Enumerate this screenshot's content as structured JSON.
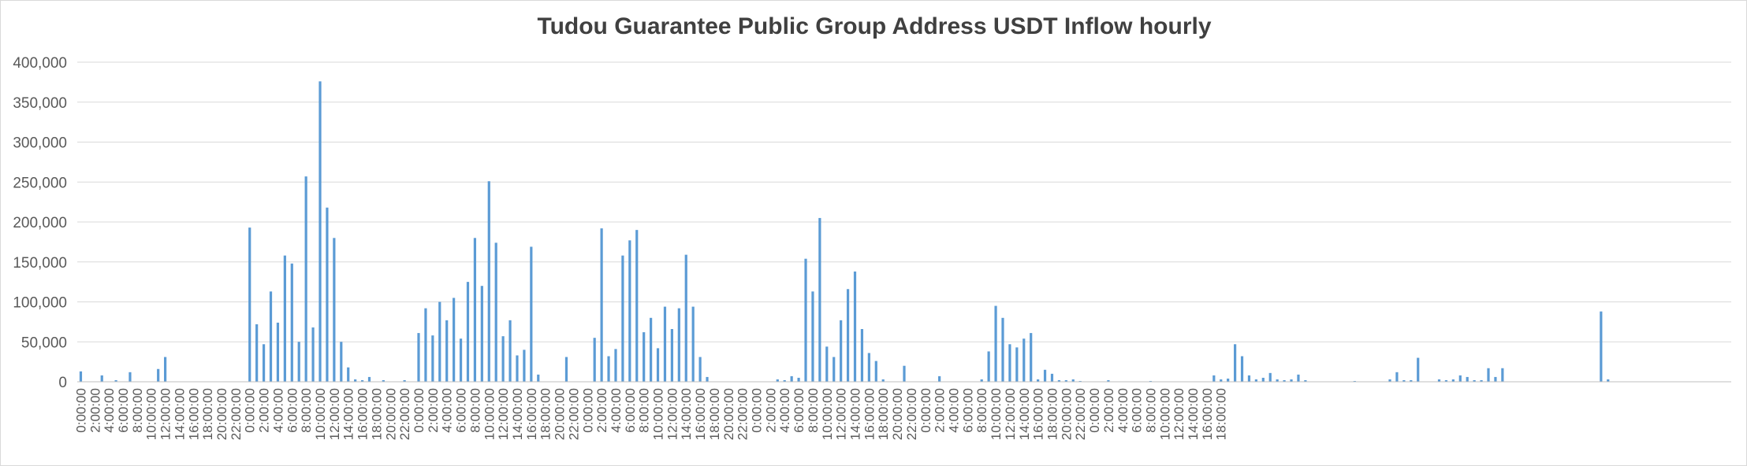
{
  "chart_data": {
    "type": "bar",
    "title": "Tudou Guarantee Public Group Address USDT Inflow hourly",
    "xlabel": "",
    "ylabel": "",
    "ylim": [
      0,
      400000
    ],
    "y_ticks": [
      "0",
      "50,000",
      "100,000",
      "150,000",
      "200,000",
      "250,000",
      "300,000",
      "350,000",
      "400,000"
    ],
    "grid": "horizontal",
    "legend": "none",
    "bar_color": "#5b9bd5",
    "x_tick_labels": [
      "0:00:00",
      "2:00:00",
      "4:00:00",
      "6:00:00",
      "8:00:00",
      "10:00:00",
      "12:00:00",
      "14:00:00",
      "16:00:00",
      "18:00:00",
      "20:00:00",
      "22:00:00",
      "0:00:00",
      "2:00:00",
      "4:00:00",
      "6:00:00",
      "8:00:00",
      "10:00:00",
      "12:00:00",
      "14:00:00",
      "16:00:00",
      "18:00:00",
      "20:00:00",
      "22:00:00",
      "0:00:00",
      "2:00:00",
      "4:00:00",
      "6:00:00",
      "8:00:00",
      "10:00:00",
      "12:00:00",
      "14:00:00",
      "16:00:00",
      "18:00:00",
      "20:00:00",
      "22:00:00",
      "0:00:00",
      "2:00:00",
      "4:00:00",
      "6:00:00",
      "8:00:00",
      "10:00:00",
      "12:00:00",
      "14:00:00",
      "16:00:00",
      "18:00:00",
      "20:00:00",
      "22:00:00",
      "0:00:00",
      "2:00:00",
      "4:00:00",
      "6:00:00",
      "8:00:00",
      "10:00:00",
      "12:00:00",
      "14:00:00",
      "16:00:00",
      "18:00:00",
      "20:00:00",
      "22:00:00",
      "0:00:00",
      "2:00:00",
      "4:00:00",
      "6:00:00",
      "8:00:00",
      "10:00:00",
      "12:00:00",
      "14:00:00",
      "16:00:00",
      "18:00:00",
      "20:00:00",
      "22:00:00",
      "0:00:00",
      "2:00:00",
      "4:00:00",
      "6:00:00",
      "8:00:00",
      "10:00:00",
      "12:00:00",
      "14:00:00",
      "16:00:00",
      "18:00:00"
    ],
    "values": [
      13000,
      0,
      0,
      8000,
      0,
      2000,
      0,
      12000,
      0,
      0,
      0,
      16000,
      31000,
      0,
      0,
      0,
      0,
      0,
      0,
      0,
      0,
      0,
      0,
      0,
      193000,
      72000,
      47000,
      113000,
      74000,
      158000,
      148000,
      50000,
      257000,
      68000,
      376000,
      218000,
      180000,
      50000,
      18000,
      3000,
      2000,
      6000,
      0,
      2000,
      0,
      0,
      2000,
      0,
      61000,
      92000,
      58000,
      100000,
      77000,
      105000,
      54000,
      125000,
      180000,
      120000,
      251000,
      174000,
      57000,
      77000,
      33000,
      40000,
      169000,
      9000,
      0,
      0,
      0,
      31000,
      0,
      0,
      0,
      55000,
      192000,
      32000,
      41000,
      158000,
      177000,
      190000,
      62000,
      80000,
      42000,
      94000,
      66000,
      92000,
      159000,
      94000,
      31000,
      6000,
      0,
      0,
      0,
      0,
      0,
      0,
      0,
      0,
      0,
      3000,
      2000,
      7000,
      5000,
      154000,
      113000,
      205000,
      44000,
      31000,
      77000,
      116000,
      138000,
      66000,
      36000,
      26000,
      3000,
      0,
      0,
      20000,
      0,
      0,
      0,
      0,
      7000,
      0,
      0,
      0,
      0,
      0,
      3000,
      38000,
      95000,
      80000,
      47000,
      43000,
      54000,
      61000,
      3000,
      15000,
      10000,
      2000,
      2000,
      3000,
      1000,
      0,
      0,
      0,
      2000,
      0,
      0,
      0,
      0,
      0,
      1000,
      0,
      0,
      0,
      0,
      0,
      0,
      0,
      0,
      8000,
      3000,
      4000,
      47000,
      32000,
      8000,
      3000,
      5000,
      11000,
      3000,
      2000,
      3000,
      9000,
      2000,
      0,
      0,
      0,
      0,
      0,
      0,
      1000,
      0,
      0,
      0,
      0,
      3000,
      12000,
      2000,
      2000,
      30000,
      0,
      0,
      3000,
      2000,
      3000,
      8000,
      6000,
      2000,
      2000,
      17000,
      6000,
      17000,
      0,
      0,
      0,
      0,
      0,
      0,
      0,
      0,
      0,
      0,
      0,
      0,
      0,
      88000,
      3000,
      0,
      0,
      0,
      0,
      0,
      0,
      0,
      0,
      0,
      0,
      0,
      0,
      0,
      0,
      0,
      0,
      0
    ]
  }
}
